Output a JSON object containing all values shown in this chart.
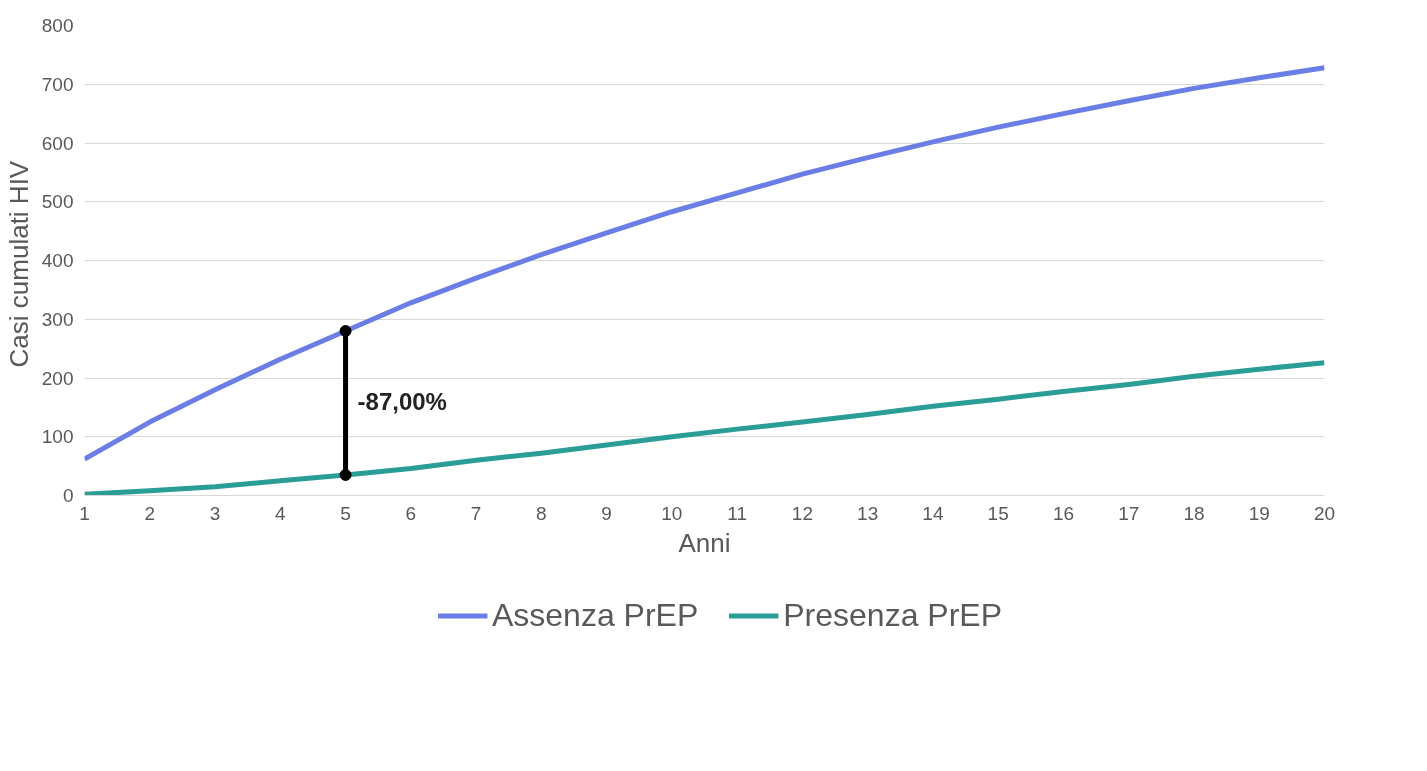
{
  "chart_data": {
    "type": "line",
    "xlabel": "Anni",
    "ylabel": "Casi cumulati  HIV",
    "x": [
      1,
      2,
      3,
      4,
      5,
      6,
      7,
      8,
      9,
      10,
      11,
      12,
      13,
      14,
      15,
      16,
      17,
      18,
      19,
      20
    ],
    "series": [
      {
        "name": "Assenza PrEP",
        "color": "#6b7ee6",
        "values": [
          62,
          125,
          180,
          232,
          280,
          328,
          370,
          410,
          447,
          483,
          515,
          547,
          575,
          602,
          627,
          650,
          672,
          693,
          711,
          728
        ]
      },
      {
        "name": "Presenza PrEP",
        "color": "#2a9d97",
        "values": [
          2,
          8,
          15,
          25,
          35,
          46,
          60,
          72,
          86,
          100,
          113,
          125,
          138,
          152,
          164,
          177,
          189,
          203,
          215,
          226
        ]
      },
      {
        "type": "line",
        "x": [
          5,
          5
        ],
        "values": [
          35,
          280
        ],
        "color": "#000000",
        "marker": "circle"
      }
    ],
    "xlim": [
      1,
      20
    ],
    "xticks": [
      1,
      2,
      3,
      4,
      5,
      6,
      7,
      8,
      9,
      10,
      11,
      12,
      13,
      14,
      15,
      16,
      17,
      18,
      19,
      20
    ],
    "ylim": [
      0,
      800
    ],
    "yticks": [
      0,
      100,
      200,
      300,
      400,
      500,
      600,
      700,
      800
    ],
    "grid": "y",
    "legend": "bottom",
    "marker": "none",
    "line_style": "solid",
    "annotations": [
      {
        "text": "-87,00%",
        "x": 5,
        "y": 160
      }
    ]
  }
}
